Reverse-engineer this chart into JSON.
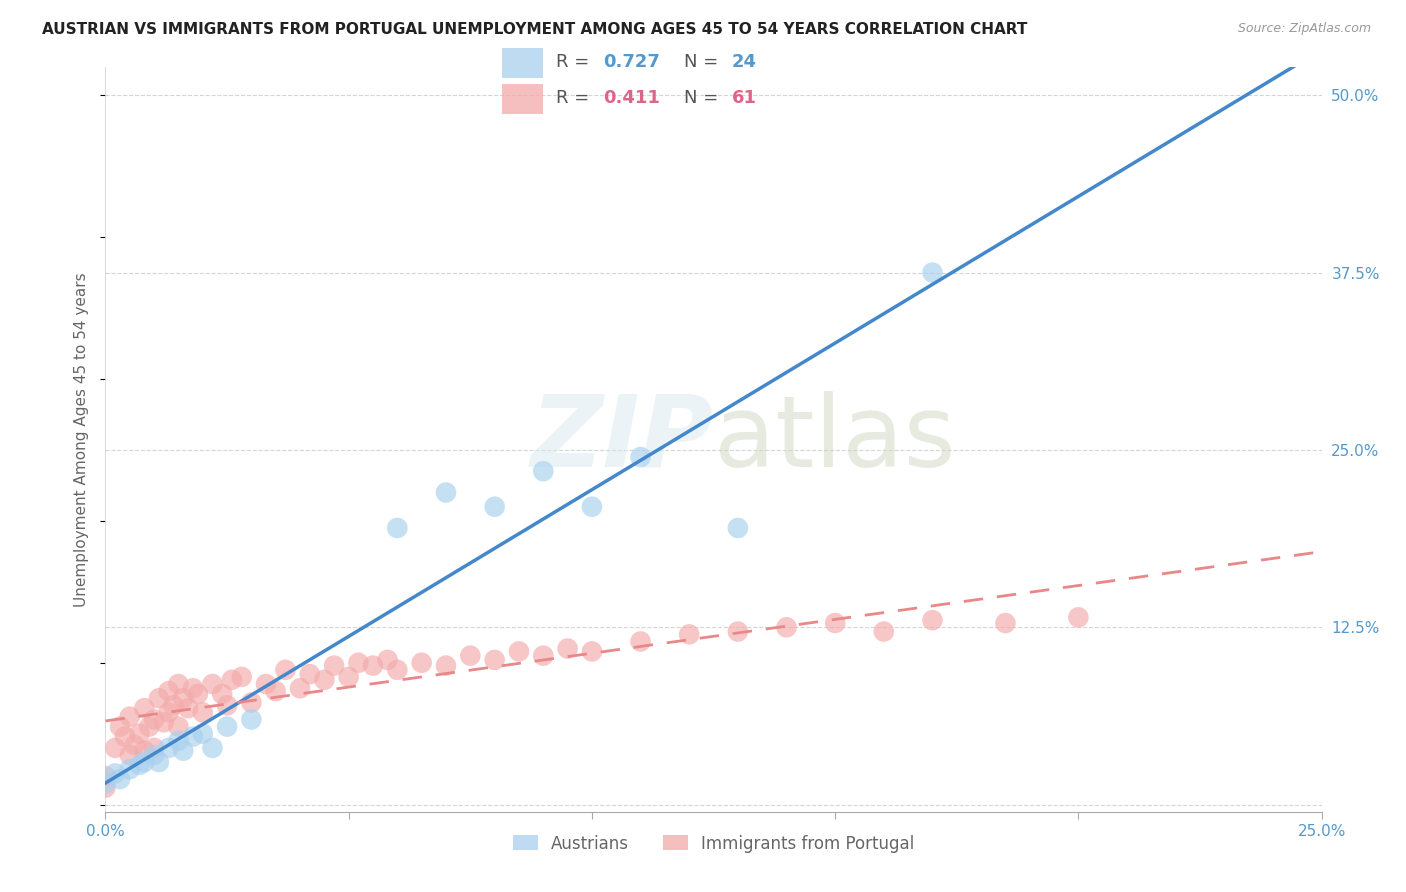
{
  "title": "AUSTRIAN VS IMMIGRANTS FROM PORTUGAL UNEMPLOYMENT AMONG AGES 45 TO 54 YEARS CORRELATION CHART",
  "source": "Source: ZipAtlas.com",
  "ylabel": "Unemployment Among Ages 45 to 54 years",
  "xlim": [
    0.0,
    0.25
  ],
  "ylim": [
    -0.005,
    0.52
  ],
  "yticks": [
    0.0,
    0.125,
    0.25,
    0.375,
    0.5
  ],
  "ytick_labels": [
    "",
    "12.5%",
    "25.0%",
    "37.5%",
    "50.0%"
  ],
  "xticks": [
    0.0,
    0.05,
    0.1,
    0.15,
    0.2,
    0.25
  ],
  "xtick_labels": [
    "0.0%",
    "",
    "",
    "",
    "",
    "25.0%"
  ],
  "blue_scatter_color": "#a8d0ee",
  "pink_scatter_color": "#f4aaaa",
  "blue_line_color": "#4488cc",
  "pink_line_color": "#e88888",
  "tick_color": "#5599cc",
  "watermark_text": "ZIPatlas",
  "legend_label1": "Austrians",
  "legend_label2": "Immigrants from Portugal",
  "r1": "0.727",
  "n1": "24",
  "r2": "0.411",
  "n2": "61",
  "title_fontsize": 11,
  "source_fontsize": 9,
  "ylabel_fontsize": 11,
  "tick_fontsize": 11,
  "legend_fontsize": 12,
  "austrians_x": [
    0.0,
    0.002,
    0.003,
    0.005,
    0.007,
    0.008,
    0.01,
    0.011,
    0.013,
    0.015,
    0.016,
    0.018,
    0.02,
    0.022,
    0.025,
    0.03,
    0.06,
    0.07,
    0.08,
    0.09,
    0.1,
    0.11,
    0.13,
    0.17
  ],
  "austrians_y": [
    0.015,
    0.022,
    0.018,
    0.025,
    0.028,
    0.03,
    0.035,
    0.03,
    0.04,
    0.045,
    0.038,
    0.048,
    0.05,
    0.04,
    0.055,
    0.06,
    0.195,
    0.22,
    0.21,
    0.235,
    0.21,
    0.245,
    0.195,
    0.375
  ],
  "immigrants_x": [
    0.0,
    0.0,
    0.002,
    0.003,
    0.004,
    0.005,
    0.005,
    0.006,
    0.007,
    0.008,
    0.008,
    0.009,
    0.01,
    0.01,
    0.011,
    0.012,
    0.013,
    0.013,
    0.014,
    0.015,
    0.015,
    0.016,
    0.017,
    0.018,
    0.019,
    0.02,
    0.022,
    0.024,
    0.025,
    0.026,
    0.028,
    0.03,
    0.033,
    0.035,
    0.037,
    0.04,
    0.042,
    0.045,
    0.047,
    0.05,
    0.052,
    0.055,
    0.058,
    0.06,
    0.065,
    0.07,
    0.075,
    0.08,
    0.085,
    0.09,
    0.095,
    0.1,
    0.11,
    0.12,
    0.13,
    0.14,
    0.15,
    0.16,
    0.17,
    0.185,
    0.2
  ],
  "immigrants_y": [
    0.012,
    0.02,
    0.04,
    0.055,
    0.048,
    0.035,
    0.062,
    0.042,
    0.05,
    0.038,
    0.068,
    0.055,
    0.04,
    0.06,
    0.075,
    0.058,
    0.065,
    0.08,
    0.07,
    0.055,
    0.085,
    0.075,
    0.068,
    0.082,
    0.078,
    0.065,
    0.085,
    0.078,
    0.07,
    0.088,
    0.09,
    0.072,
    0.085,
    0.08,
    0.095,
    0.082,
    0.092,
    0.088,
    0.098,
    0.09,
    0.1,
    0.098,
    0.102,
    0.095,
    0.1,
    0.098,
    0.105,
    0.102,
    0.108,
    0.105,
    0.11,
    0.108,
    0.115,
    0.12,
    0.122,
    0.125,
    0.128,
    0.122,
    0.13,
    0.128,
    0.132
  ]
}
